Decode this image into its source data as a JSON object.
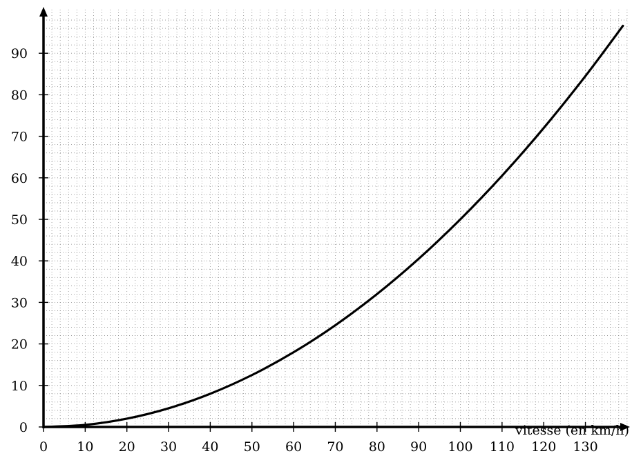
{
  "chart_data": {
    "type": "line",
    "title": "",
    "xlabel": "vitesse (en km/h)",
    "ylabel": "",
    "xlim": [
      0,
      140
    ],
    "ylim": [
      0,
      99
    ],
    "x_ticks": [
      0,
      10,
      20,
      30,
      40,
      50,
      60,
      70,
      80,
      90,
      100,
      110,
      120,
      130
    ],
    "y_ticks": [
      0,
      10,
      20,
      30,
      40,
      50,
      60,
      70,
      80,
      90
    ],
    "grid": "dotted",
    "series": [
      {
        "x": [
          0,
          10,
          20,
          30,
          40,
          50,
          60,
          70,
          80,
          90,
          100,
          110,
          120,
          130,
          139
        ],
        "y": [
          0,
          0.5,
          2,
          4.5,
          8,
          12.5,
          18,
          24.5,
          32,
          40.5,
          50,
          60.5,
          72,
          84.5,
          96.6
        ],
        "color": "#000000"
      }
    ]
  }
}
